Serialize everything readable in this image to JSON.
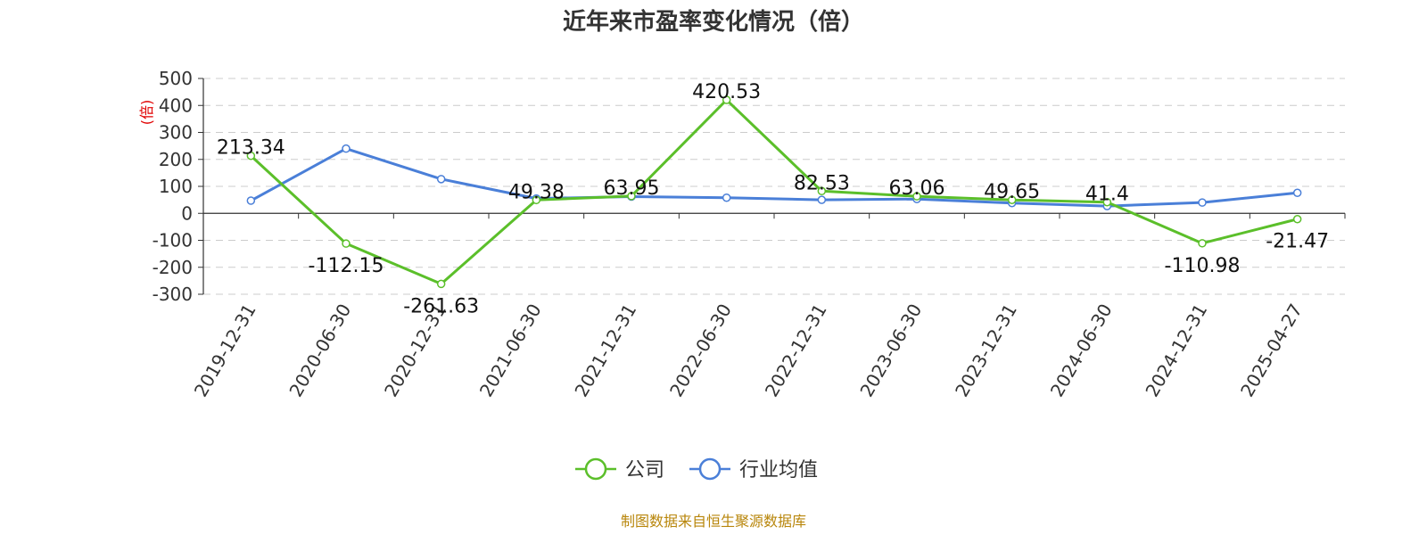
{
  "chart_data": {
    "type": "line",
    "title": "近年来市盈率变化情况（倍）",
    "ylabel": "(倍)",
    "xlabel": "",
    "categories": [
      "2019-12-31",
      "2020-06-30",
      "2020-12-31",
      "2021-06-30",
      "2021-12-31",
      "2022-06-30",
      "2022-12-31",
      "2023-06-30",
      "2023-12-31",
      "2024-06-30",
      "2024-12-31",
      "2025-04-27"
    ],
    "ylim": [
      -300,
      500
    ],
    "yticks": [
      500,
      400,
      300,
      200,
      100,
      0,
      -100,
      -200,
      -300
    ],
    "grid": true,
    "legend_position": "bottom",
    "series": [
      {
        "name": "公司",
        "color": "#5bbf2a",
        "values": [
          213.34,
          -112.15,
          -261.63,
          49.38,
          63.95,
          420.53,
          82.53,
          63.06,
          49.65,
          41.4,
          -110.98,
          -21.47
        ],
        "labels": [
          "213.34",
          "-112.15",
          "-261.63",
          "49.38",
          "63.95",
          "420.53",
          "82.53",
          "63.06",
          "49.65",
          "41.4",
          "-110.98",
          "-21.47"
        ]
      },
      {
        "name": "行业均值",
        "color": "#4a7fd8",
        "values": [
          47,
          240,
          127,
          55,
          62,
          58,
          50,
          53,
          38,
          27,
          40,
          76
        ]
      }
    ]
  },
  "footer": {
    "source": "制图数据来自恒生聚源数据库"
  }
}
